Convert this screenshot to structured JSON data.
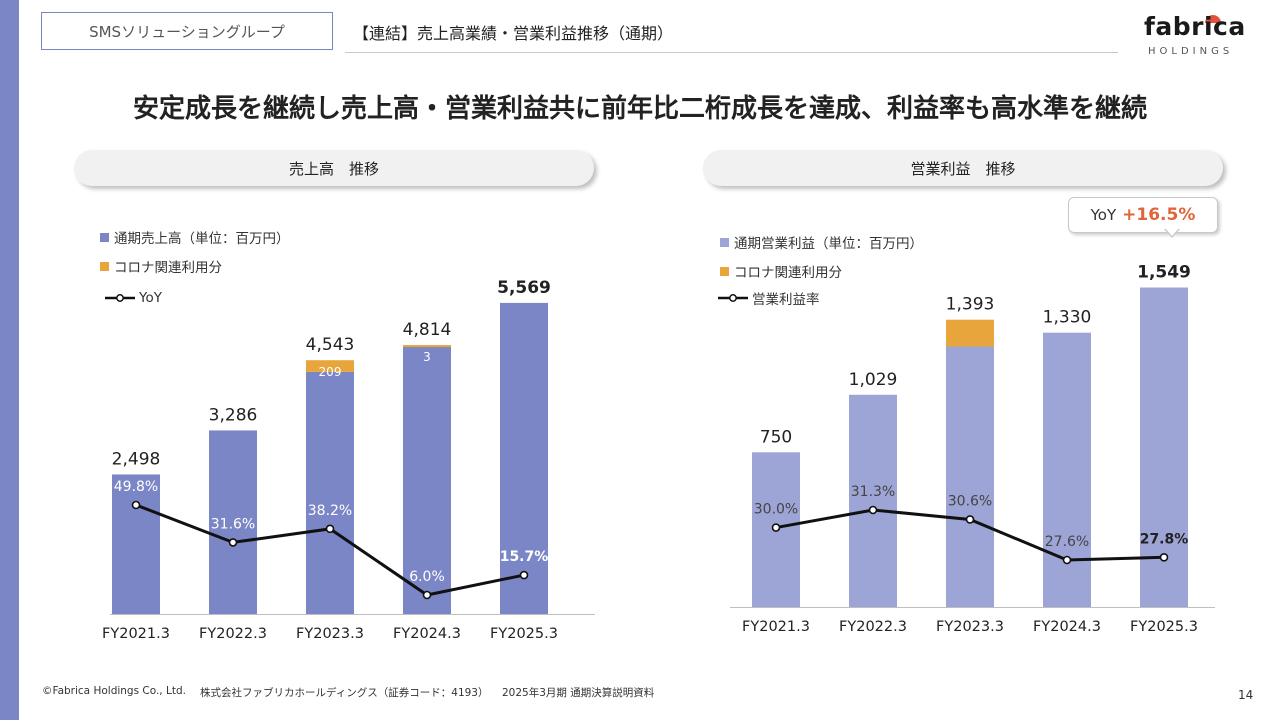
{
  "header": {
    "group": "SMSソリューショングループ",
    "section_title": "【連結】売上高業績・営業利益推移（通期）",
    "logo_main": "fabrica",
    "logo_sub": "HOLDINGS"
  },
  "headline": "安定成長を継続し売上高・営業利益共に前年比二桁成長を達成、利益率も高水準を継続",
  "colors": {
    "accent": "#7b86c6",
    "sales_bar": "#7b86c6",
    "profit_bar": "#9da5d6",
    "covid": "#e8a53c",
    "line": "#111111",
    "highlight": "#e0653a"
  },
  "chart_data": [
    {
      "type": "bar",
      "title": "売上高　推移",
      "categories": [
        "FY2021.3",
        "FY2022.3",
        "FY2023.3",
        "FY2024.3",
        "FY2025.3"
      ],
      "series": [
        {
          "name": "通期売上高（単位：百万円）",
          "values": [
            2498,
            3286,
            4543,
            4814,
            5569
          ]
        },
        {
          "name": "コロナ関連利用分",
          "values": [
            0,
            0,
            209,
            3,
            0
          ]
        }
      ],
      "totals_labels": [
        "2,498",
        "3,286",
        "4,543",
        "4,814",
        "5,569"
      ],
      "covid_labels": [
        "",
        "",
        "209",
        "3",
        ""
      ],
      "line": {
        "name": "YoY",
        "values": [
          49.8,
          31.6,
          38.2,
          6.0,
          15.7
        ],
        "labels": [
          "49.8%",
          "31.6%",
          "38.2%",
          "6.0%",
          "15.7%"
        ]
      },
      "ylim": [
        0,
        5800
      ]
    },
    {
      "type": "bar",
      "title": "営業利益　推移",
      "categories": [
        "FY2021.3",
        "FY2022.3",
        "FY2023.3",
        "FY2024.3",
        "FY2025.3"
      ],
      "series": [
        {
          "name": "通期営業利益（単位：百万円）",
          "values": [
            750,
            1029,
            1393,
            1330,
            1549
          ]
        },
        {
          "name": "コロナ関連利用分",
          "values": [
            0,
            0,
            130,
            0,
            0
          ]
        }
      ],
      "totals_labels": [
        "750",
        "1,029",
        "1,393",
        "1,330",
        "1,549"
      ],
      "line": {
        "name": "営業利益率",
        "values": [
          30.0,
          31.3,
          30.6,
          27.6,
          27.8
        ],
        "labels": [
          "30.0%",
          "31.3%",
          "30.6%",
          "27.6%",
          "27.8%"
        ]
      },
      "ylim": [
        0,
        1600
      ],
      "callout": {
        "label": "YoY",
        "value": "+16.5%"
      }
    }
  ],
  "footer": {
    "copyright": "©Fabrica Holdings Co., Ltd.",
    "company": "株式会社ファブリカホールディングス（証券コード：4193）",
    "doc": "2025年3月期 通期決算説明資料",
    "page": "14"
  }
}
